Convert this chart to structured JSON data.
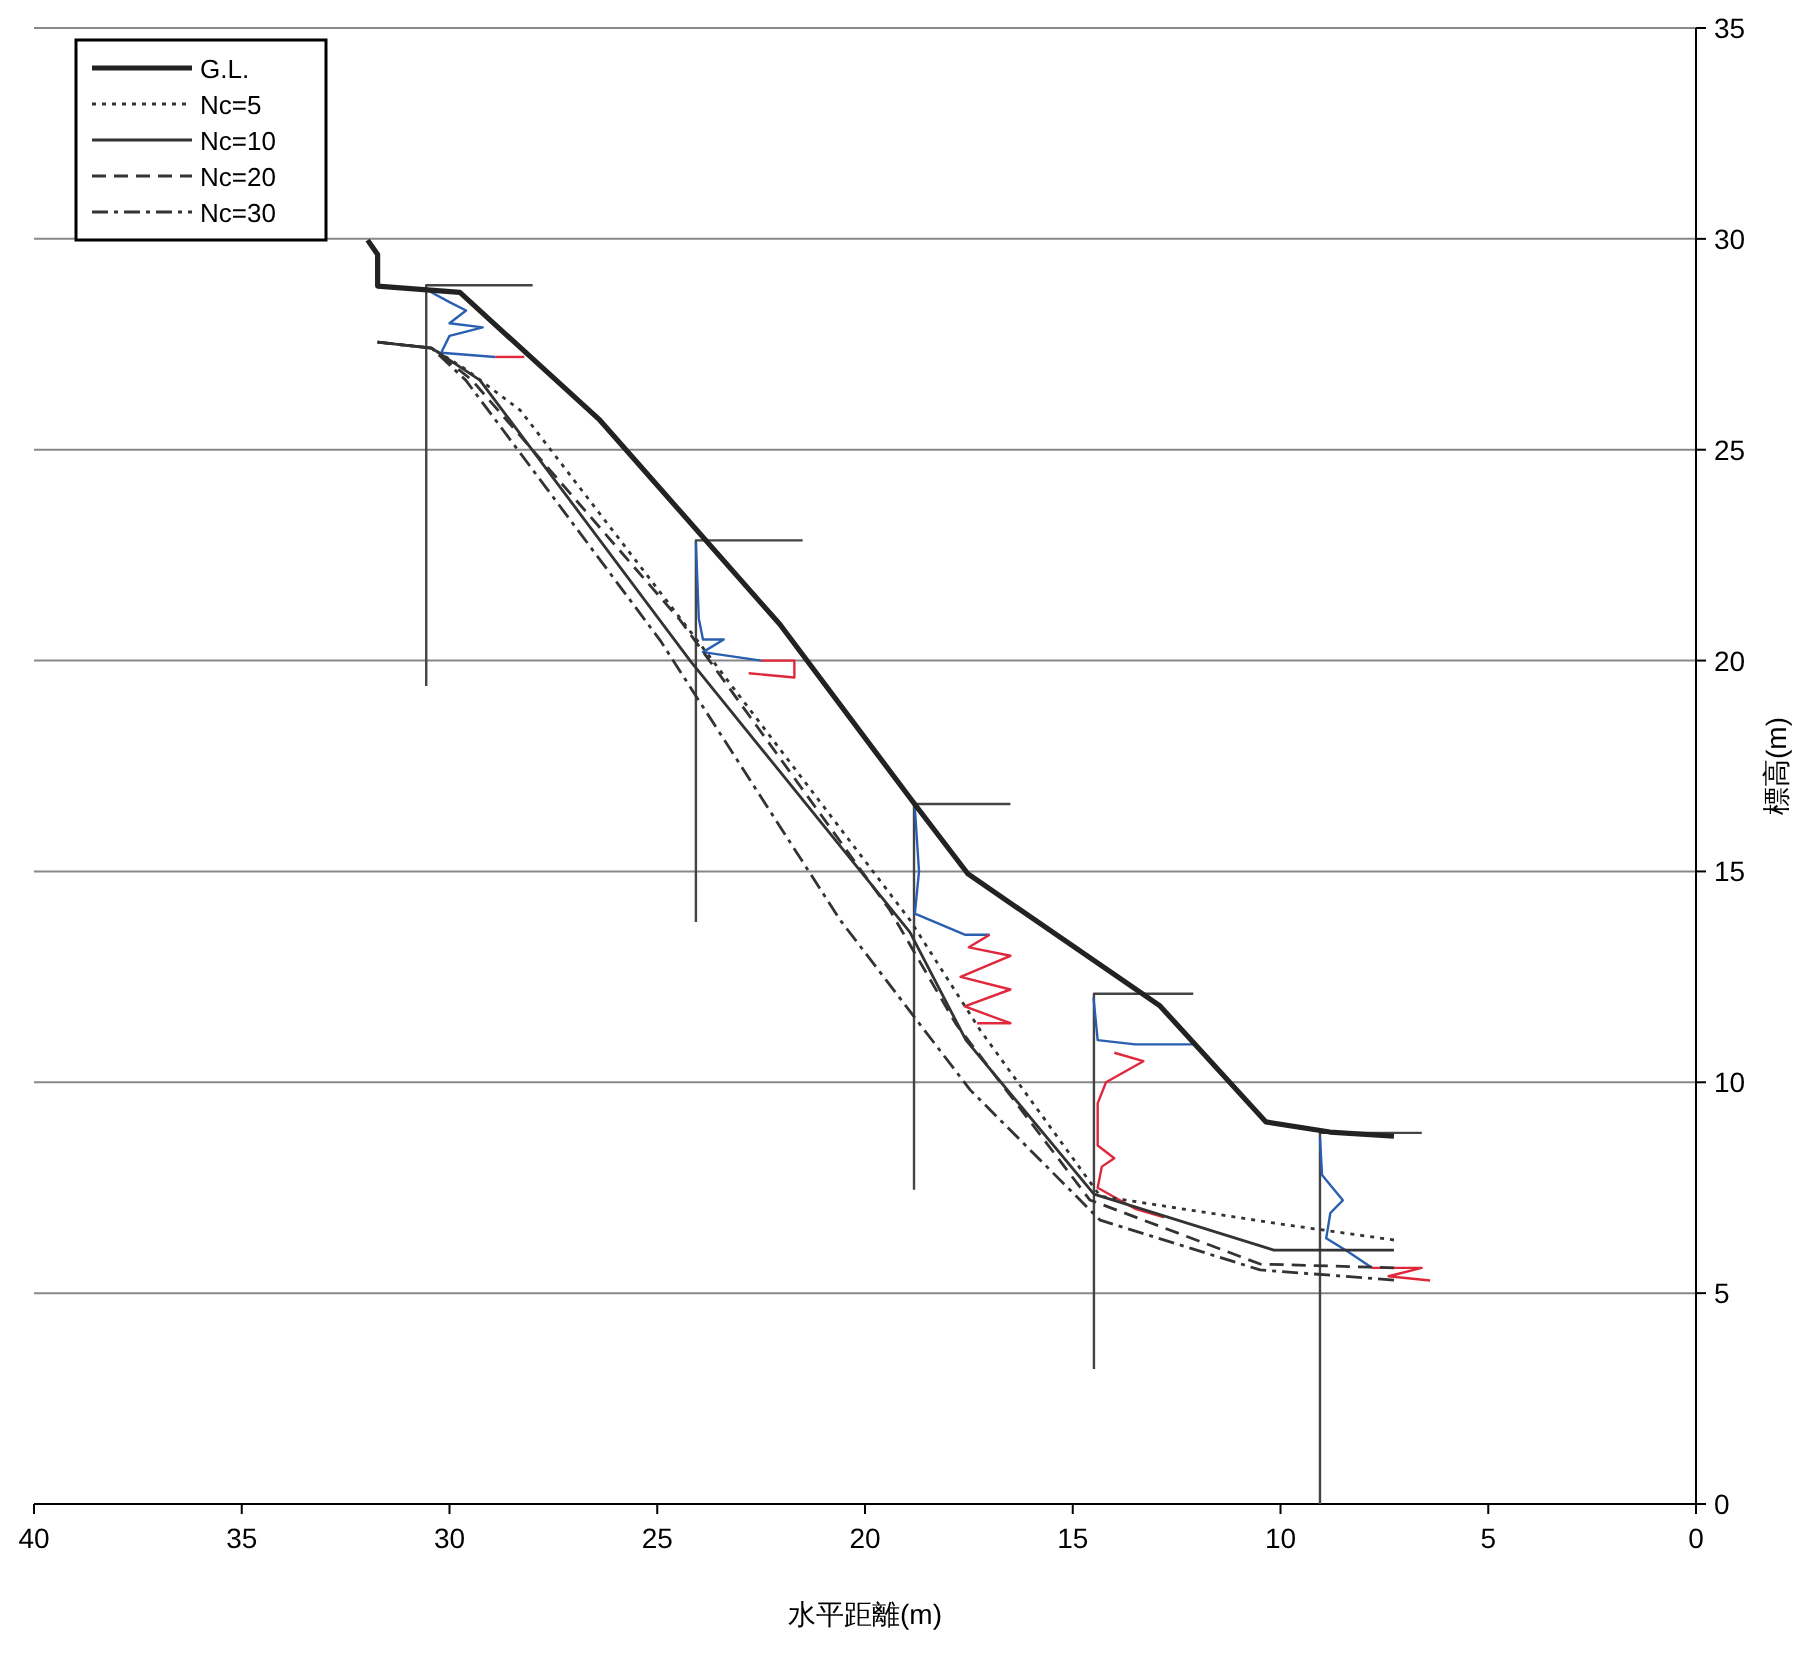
{
  "chart_data": {
    "type": "line",
    "xlabel": "水平距離(m)",
    "ylabel": "標高(m)",
    "xlim": [
      40,
      0
    ],
    "xticks": [
      40,
      35,
      30,
      25,
      20,
      15,
      10,
      5,
      0
    ],
    "ylim": [
      0,
      35
    ],
    "yticks": [
      0,
      5,
      10,
      15,
      20,
      25,
      30,
      35
    ],
    "grid": "y",
    "legend": "top left",
    "marker": "none",
    "series": [
      {
        "name": "G.L.",
        "color": "#222222",
        "line_style": "solid",
        "x": [
          31.97,
          31.73,
          31.73,
          29.75,
          26.38,
          22.05,
          18.77,
          17.52,
          12.9,
          10.35,
          8.81,
          7.27
        ],
        "values": [
          29.97,
          29.63,
          28.88,
          28.73,
          25.7,
          20.86,
          16.55,
          14.94,
          11.81,
          9.06,
          8.82,
          8.72
        ]
      },
      {
        "name": "Nc=5",
        "color": "#333333",
        "line_style": "dotted",
        "x": [
          31.73,
          30.43,
          29.6,
          28.3,
          23.97,
          18.92,
          17.23,
          14.34,
          10.01,
          7.27
        ],
        "values": [
          27.55,
          27.41,
          26.9,
          25.94,
          20.39,
          13.85,
          11.24,
          7.3,
          6.64,
          6.26
        ]
      },
      {
        "name": "Nc=10",
        "color": "#333333",
        "line_style": "solid",
        "x": [
          31.73,
          30.43,
          29.27,
          24.21,
          18.92,
          17.57,
          14.49,
          10.16,
          7.27
        ],
        "values": [
          27.55,
          27.41,
          26.65,
          20.0,
          13.56,
          11.0,
          7.35,
          6.02,
          6.02
        ]
      },
      {
        "name": "Nc=20",
        "color": "#333333",
        "line_style": "dashed",
        "x": [
          31.73,
          30.43,
          29.46,
          24.45,
          19.4,
          17.81,
          14.59,
          10.49,
          7.27
        ],
        "values": [
          27.55,
          27.41,
          26.65,
          20.96,
          14.08,
          11.38,
          7.21,
          5.69,
          5.6
        ]
      },
      {
        "name": "Nc=30",
        "color": "#333333",
        "line_style": "dashdot",
        "x": [
          31.73,
          30.43,
          29.61,
          24.93,
          20.6,
          17.47,
          14.34,
          10.49,
          7.27
        ],
        "values": [
          27.55,
          27.41,
          26.65,
          20.48,
          13.85,
          9.82,
          6.73,
          5.55,
          5.31
        ]
      },
      {
        "color": "#444444",
        "line_style": "solid",
        "x": [
          28.0,
          30.56,
          30.56
        ],
        "values": [
          28.9,
          28.9,
          19.4
        ]
      },
      {
        "color": "#444444",
        "line_style": "solid",
        "x": [
          21.5,
          24.07,
          24.07
        ],
        "values": [
          22.85,
          22.85,
          13.8
        ]
      },
      {
        "color": "#444444",
        "line_style": "solid",
        "x": [
          16.5,
          18.82,
          18.82
        ],
        "values": [
          16.6,
          16.6,
          7.45
        ]
      },
      {
        "color": "#444444",
        "line_style": "solid",
        "x": [
          12.1,
          14.49,
          14.49
        ],
        "values": [
          12.1,
          12.1,
          3.2
        ]
      },
      {
        "color": "#444444",
        "line_style": "solid",
        "x": [
          6.6,
          9.05,
          9.05
        ],
        "values": [
          8.8,
          8.8,
          0
        ]
      },
      {
        "color": "#2a5fb0",
        "line_style": "solid",
        "x": [
          30.56,
          30.0,
          29.6,
          30.0,
          29.2,
          30.0,
          30.2,
          28.9
        ],
        "values": [
          28.8,
          28.5,
          28.3,
          28.0,
          27.9,
          27.7,
          27.3,
          27.2
        ]
      },
      {
        "color": "#e0283c",
        "line_style": "solid",
        "x": [
          28.9,
          28.2
        ],
        "values": [
          27.2,
          27.2
        ]
      },
      {
        "color": "#2a5fb0",
        "line_style": "solid",
        "x": [
          24.07,
          24.0,
          23.9,
          23.4,
          23.9,
          22.5
        ],
        "values": [
          22.8,
          21.0,
          20.5,
          20.5,
          20.2,
          20.0
        ]
      },
      {
        "color": "#e0283c",
        "line_style": "solid",
        "x": [
          22.5,
          21.7,
          21.7,
          22.8
        ],
        "values": [
          20.0,
          20.0,
          19.6,
          19.7
        ]
      },
      {
        "color": "#2a5fb0",
        "line_style": "solid",
        "x": [
          18.8,
          18.7,
          18.8,
          17.6,
          17.0
        ],
        "values": [
          16.5,
          15.0,
          14.0,
          13.5,
          13.5
        ]
      },
      {
        "color": "#e0283c",
        "line_style": "solid",
        "x": [
          17.0,
          17.5,
          16.5,
          17.7,
          16.5,
          17.6,
          16.5,
          17.3
        ],
        "values": [
          13.5,
          13.2,
          13.0,
          12.5,
          12.2,
          11.8,
          11.4,
          11.4
        ]
      },
      {
        "color": "#2a5fb0",
        "line_style": "solid",
        "x": [
          14.5,
          14.4,
          13.5,
          12.1
        ],
        "values": [
          12.0,
          11.0,
          10.9,
          10.9
        ]
      },
      {
        "color": "#e0283c",
        "line_style": "solid",
        "x": [
          14.0,
          13.3,
          14.2,
          14.4,
          14.4,
          14.0,
          14.3,
          14.4,
          13.5,
          12.8
        ],
        "values": [
          10.7,
          10.5,
          10.0,
          9.5,
          8.5,
          8.2,
          8.0,
          7.5,
          7.0,
          6.8
        ]
      },
      {
        "color": "#2a5fb0",
        "line_style": "solid",
        "x": [
          9.05,
          9.0,
          8.5,
          8.8,
          8.9,
          8.4,
          7.8
        ],
        "values": [
          8.7,
          7.8,
          7.2,
          6.9,
          6.3,
          6.0,
          5.6
        ]
      },
      {
        "color": "#e0283c",
        "line_style": "solid",
        "x": [
          7.8,
          6.6,
          7.4,
          6.4
        ],
        "values": [
          5.6,
          5.6,
          5.4,
          5.3
        ]
      }
    ]
  }
}
